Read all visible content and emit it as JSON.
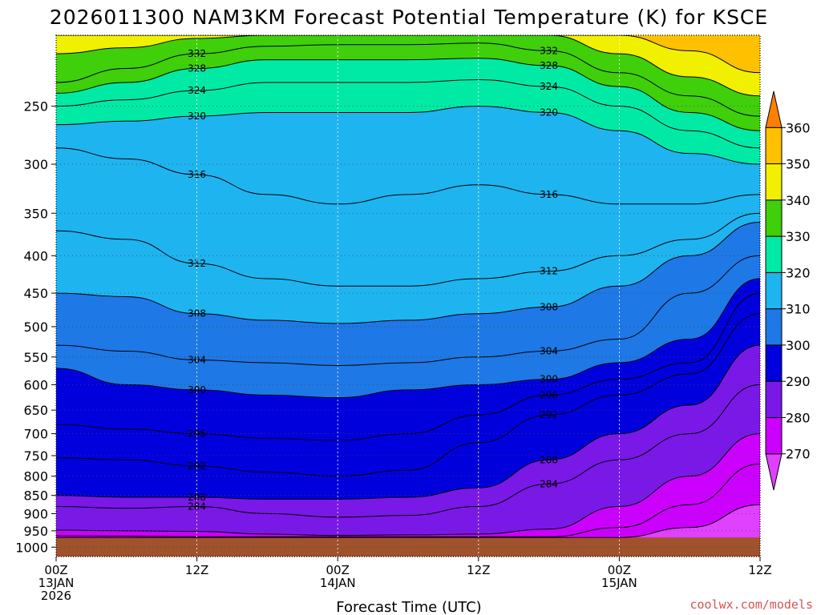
{
  "chart_data": {
    "type": "heatmap",
    "title": "2026011300 NAM3KM Forecast Potential Temperature (K) for KSCE",
    "xlabel": "Forecast Time (UTC)",
    "ylabel": "",
    "x_range_hours": [
      0,
      60
    ],
    "y_range_hpa": [
      200,
      1030
    ],
    "y_ticks": [
      250,
      300,
      350,
      400,
      450,
      500,
      550,
      600,
      650,
      700,
      750,
      800,
      850,
      900,
      950,
      1000
    ],
    "x_ticks": [
      {
        "hour": 0,
        "line1": "00Z",
        "line2": "13JAN",
        "line3": "2026"
      },
      {
        "hour": 12,
        "line1": "12Z",
        "line2": "",
        "line3": ""
      },
      {
        "hour": 24,
        "line1": "00Z",
        "line2": "14JAN",
        "line3": ""
      },
      {
        "hour": 36,
        "line1": "12Z",
        "line2": "",
        "line3": ""
      },
      {
        "hour": 48,
        "line1": "00Z",
        "line2": "15JAN",
        "line3": ""
      },
      {
        "hour": 60,
        "line1": "12Z",
        "line2": "",
        "line3": ""
      }
    ],
    "colorbar": {
      "levels": [
        270,
        280,
        290,
        300,
        310,
        320,
        330,
        340,
        350,
        360
      ],
      "bins": [
        {
          "from": 260,
          "to": 270,
          "color": "#e040ff"
        },
        {
          "from": 270,
          "to": 280,
          "color": "#cc00ff"
        },
        {
          "from": 280,
          "to": 290,
          "color": "#7a18e8"
        },
        {
          "from": 290,
          "to": 300,
          "color": "#0000dd"
        },
        {
          "from": 300,
          "to": 310,
          "color": "#1e78e6"
        },
        {
          "from": 310,
          "to": 320,
          "color": "#1eb4f0"
        },
        {
          "from": 320,
          "to": 330,
          "color": "#00eaa6"
        },
        {
          "from": 330,
          "to": 340,
          "color": "#3fcf0b"
        },
        {
          "from": 340,
          "to": 350,
          "color": "#f0f000"
        },
        {
          "from": 350,
          "to": 360,
          "color": "#ffc000"
        },
        {
          "from": 360,
          "to": 370,
          "color": "#ff8000"
        }
      ]
    },
    "ground_color": "#a0522d",
    "isentropes": [
      {
        "theta": 270,
        "pressure_hpa": [
          972,
          972,
          972,
          972,
          972,
          972,
          972,
          972,
          972,
          940,
          875
        ]
      },
      {
        "theta": 276,
        "pressure_hpa": [
          965,
          966,
          968,
          968,
          968,
          968,
          968,
          968,
          940,
          875,
          770
        ]
      },
      {
        "theta": 280,
        "pressure_hpa": [
          948,
          950,
          952,
          960,
          964,
          962,
          960,
          945,
          880,
          800,
          700
        ]
      },
      {
        "theta": 284,
        "pressure_hpa": [
          880,
          885,
          880,
          900,
          910,
          905,
          880,
          820,
          760,
          700,
          600
        ]
      },
      {
        "theta": 288,
        "pressure_hpa": [
          850,
          855,
          855,
          860,
          860,
          855,
          830,
          760,
          700,
          640,
          530
        ]
      },
      {
        "theta": 292,
        "pressure_hpa": [
          755,
          760,
          775,
          790,
          800,
          785,
          720,
          660,
          620,
          580,
          480
        ]
      },
      {
        "theta": 296,
        "pressure_hpa": [
          680,
          690,
          700,
          710,
          715,
          700,
          660,
          620,
          590,
          560,
          450
        ]
      },
      {
        "theta": 300,
        "pressure_hpa": [
          570,
          600,
          610,
          620,
          625,
          610,
          600,
          590,
          560,
          520,
          430
        ]
      },
      {
        "theta": 304,
        "pressure_hpa": [
          530,
          540,
          555,
          560,
          565,
          560,
          550,
          540,
          520,
          450,
          400
        ]
      },
      {
        "theta": 308,
        "pressure_hpa": [
          450,
          455,
          480,
          490,
          495,
          490,
          480,
          470,
          440,
          400,
          360
        ]
      },
      {
        "theta": 312,
        "pressure_hpa": [
          370,
          380,
          410,
          430,
          440,
          440,
          430,
          420,
          400,
          380,
          350
        ]
      },
      {
        "theta": 316,
        "pressure_hpa": [
          285,
          295,
          310,
          330,
          340,
          330,
          320,
          330,
          340,
          340,
          330
        ]
      },
      {
        "theta": 320,
        "pressure_hpa": [
          265,
          262,
          258,
          255,
          255,
          255,
          250,
          255,
          270,
          290,
          300
        ]
      },
      {
        "theta": 324,
        "pressure_hpa": [
          250,
          245,
          238,
          232,
          232,
          232,
          230,
          235,
          250,
          270,
          285
        ]
      },
      {
        "theta": 328,
        "pressure_hpa": [
          240,
          232,
          222,
          216,
          216,
          216,
          215,
          220,
          235,
          255,
          270
        ]
      },
      {
        "theta": 332,
        "pressure_hpa": [
          232,
          222,
          212,
          207,
          206,
          206,
          205,
          210,
          225,
          242,
          258
        ]
      },
      {
        "theta": 340,
        "pressure_hpa": [
          212,
          208,
          202,
          200,
          200,
          200,
          200,
          200,
          212,
          228,
          242
        ]
      },
      {
        "theta": 350,
        "pressure_hpa": [
          200,
          200,
          200,
          200,
          200,
          200,
          200,
          200,
          200,
          210,
          225
        ]
      }
    ],
    "contour_label_values": [
      "332",
      "328",
      "324",
      "320",
      "316",
      "312",
      "308",
      "304",
      "300",
      "296",
      "292",
      "288",
      "284"
    ]
  },
  "footer": {
    "credit": "coolwx.com/models"
  }
}
